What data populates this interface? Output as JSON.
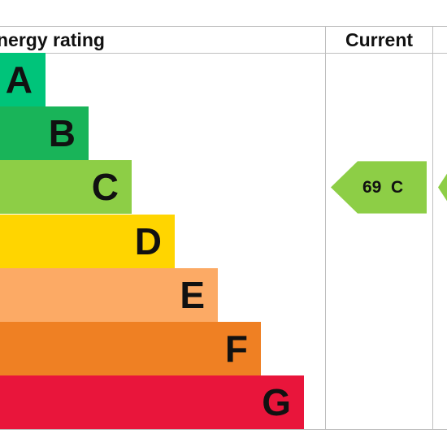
{
  "header": {
    "title": "nergy rating",
    "current_label": "Current"
  },
  "chart_data": {
    "type": "bar",
    "categories": [
      "A",
      "B",
      "C",
      "D",
      "E",
      "F",
      "G"
    ],
    "bands": [
      {
        "letter": "A",
        "color": "#00c47a"
      },
      {
        "letter": "B",
        "color": "#19b459"
      },
      {
        "letter": "C",
        "color": "#8dce46"
      },
      {
        "letter": "D",
        "color": "#ffd500"
      },
      {
        "letter": "E",
        "color": "#fcaa65"
      },
      {
        "letter": "F",
        "color": "#ef8023"
      },
      {
        "letter": "G",
        "color": "#e9153b"
      }
    ],
    "current": {
      "value": 69,
      "band": "C",
      "text": "69  C",
      "color": "#8dce46"
    },
    "potential": {
      "band": "C",
      "color": "#8dce46"
    }
  }
}
